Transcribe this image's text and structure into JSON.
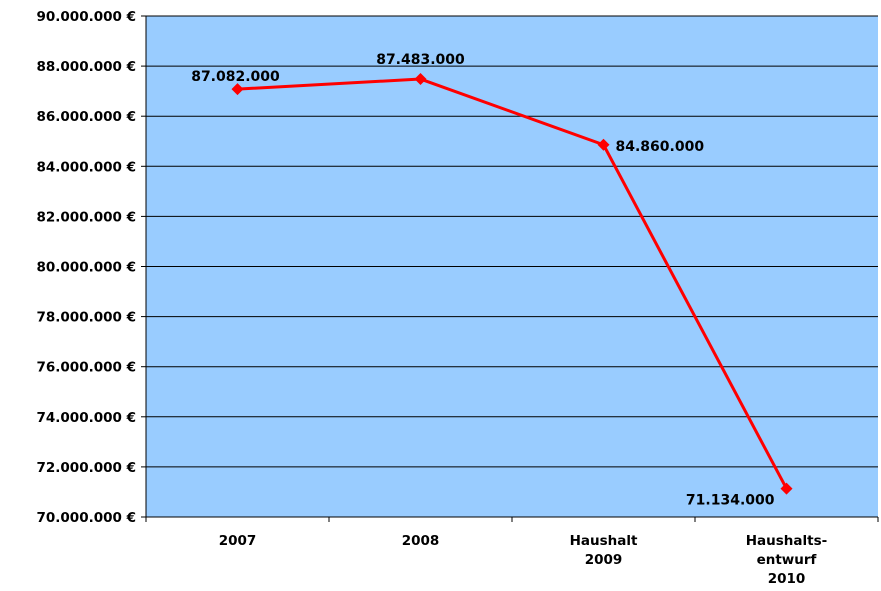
{
  "chart_data": {
    "type": "line",
    "categories": [
      "2007",
      "2008",
      "Haushalt 2009",
      "Haushalts-entwurf 2010"
    ],
    "category_lines": [
      [
        "2007"
      ],
      [
        "2008"
      ],
      [
        "Haushalt",
        "2009"
      ],
      [
        "Haushalts-",
        "entwurf",
        "2010"
      ]
    ],
    "series": [
      {
        "name": "",
        "values": [
          87082000,
          87483000,
          84860000,
          71134000
        ]
      }
    ],
    "data_labels": [
      "87.082.000",
      "87.483.000",
      "84.860.000",
      "71.134.000"
    ],
    "y_ticks": [
      70000000,
      72000000,
      74000000,
      76000000,
      78000000,
      80000000,
      82000000,
      84000000,
      86000000,
      88000000,
      90000000
    ],
    "y_tick_labels": [
      "70.000.000 €",
      "72.000.000 €",
      "74.000.000 €",
      "76.000.000 €",
      "78.000.000 €",
      "80.000.000 €",
      "82.000.000 €",
      "84.000.000 €",
      "86.000.000 €",
      "88.000.000 €",
      "90.000.000 €"
    ],
    "ylim": [
      70000000,
      90000000
    ],
    "title": "",
    "xlabel": "",
    "ylabel": "",
    "grid": true,
    "legend": "none",
    "colors": {
      "plot_background": "#99ccff",
      "line": "#ff0000",
      "marker": "#ff0000",
      "grid": "#000000"
    }
  }
}
